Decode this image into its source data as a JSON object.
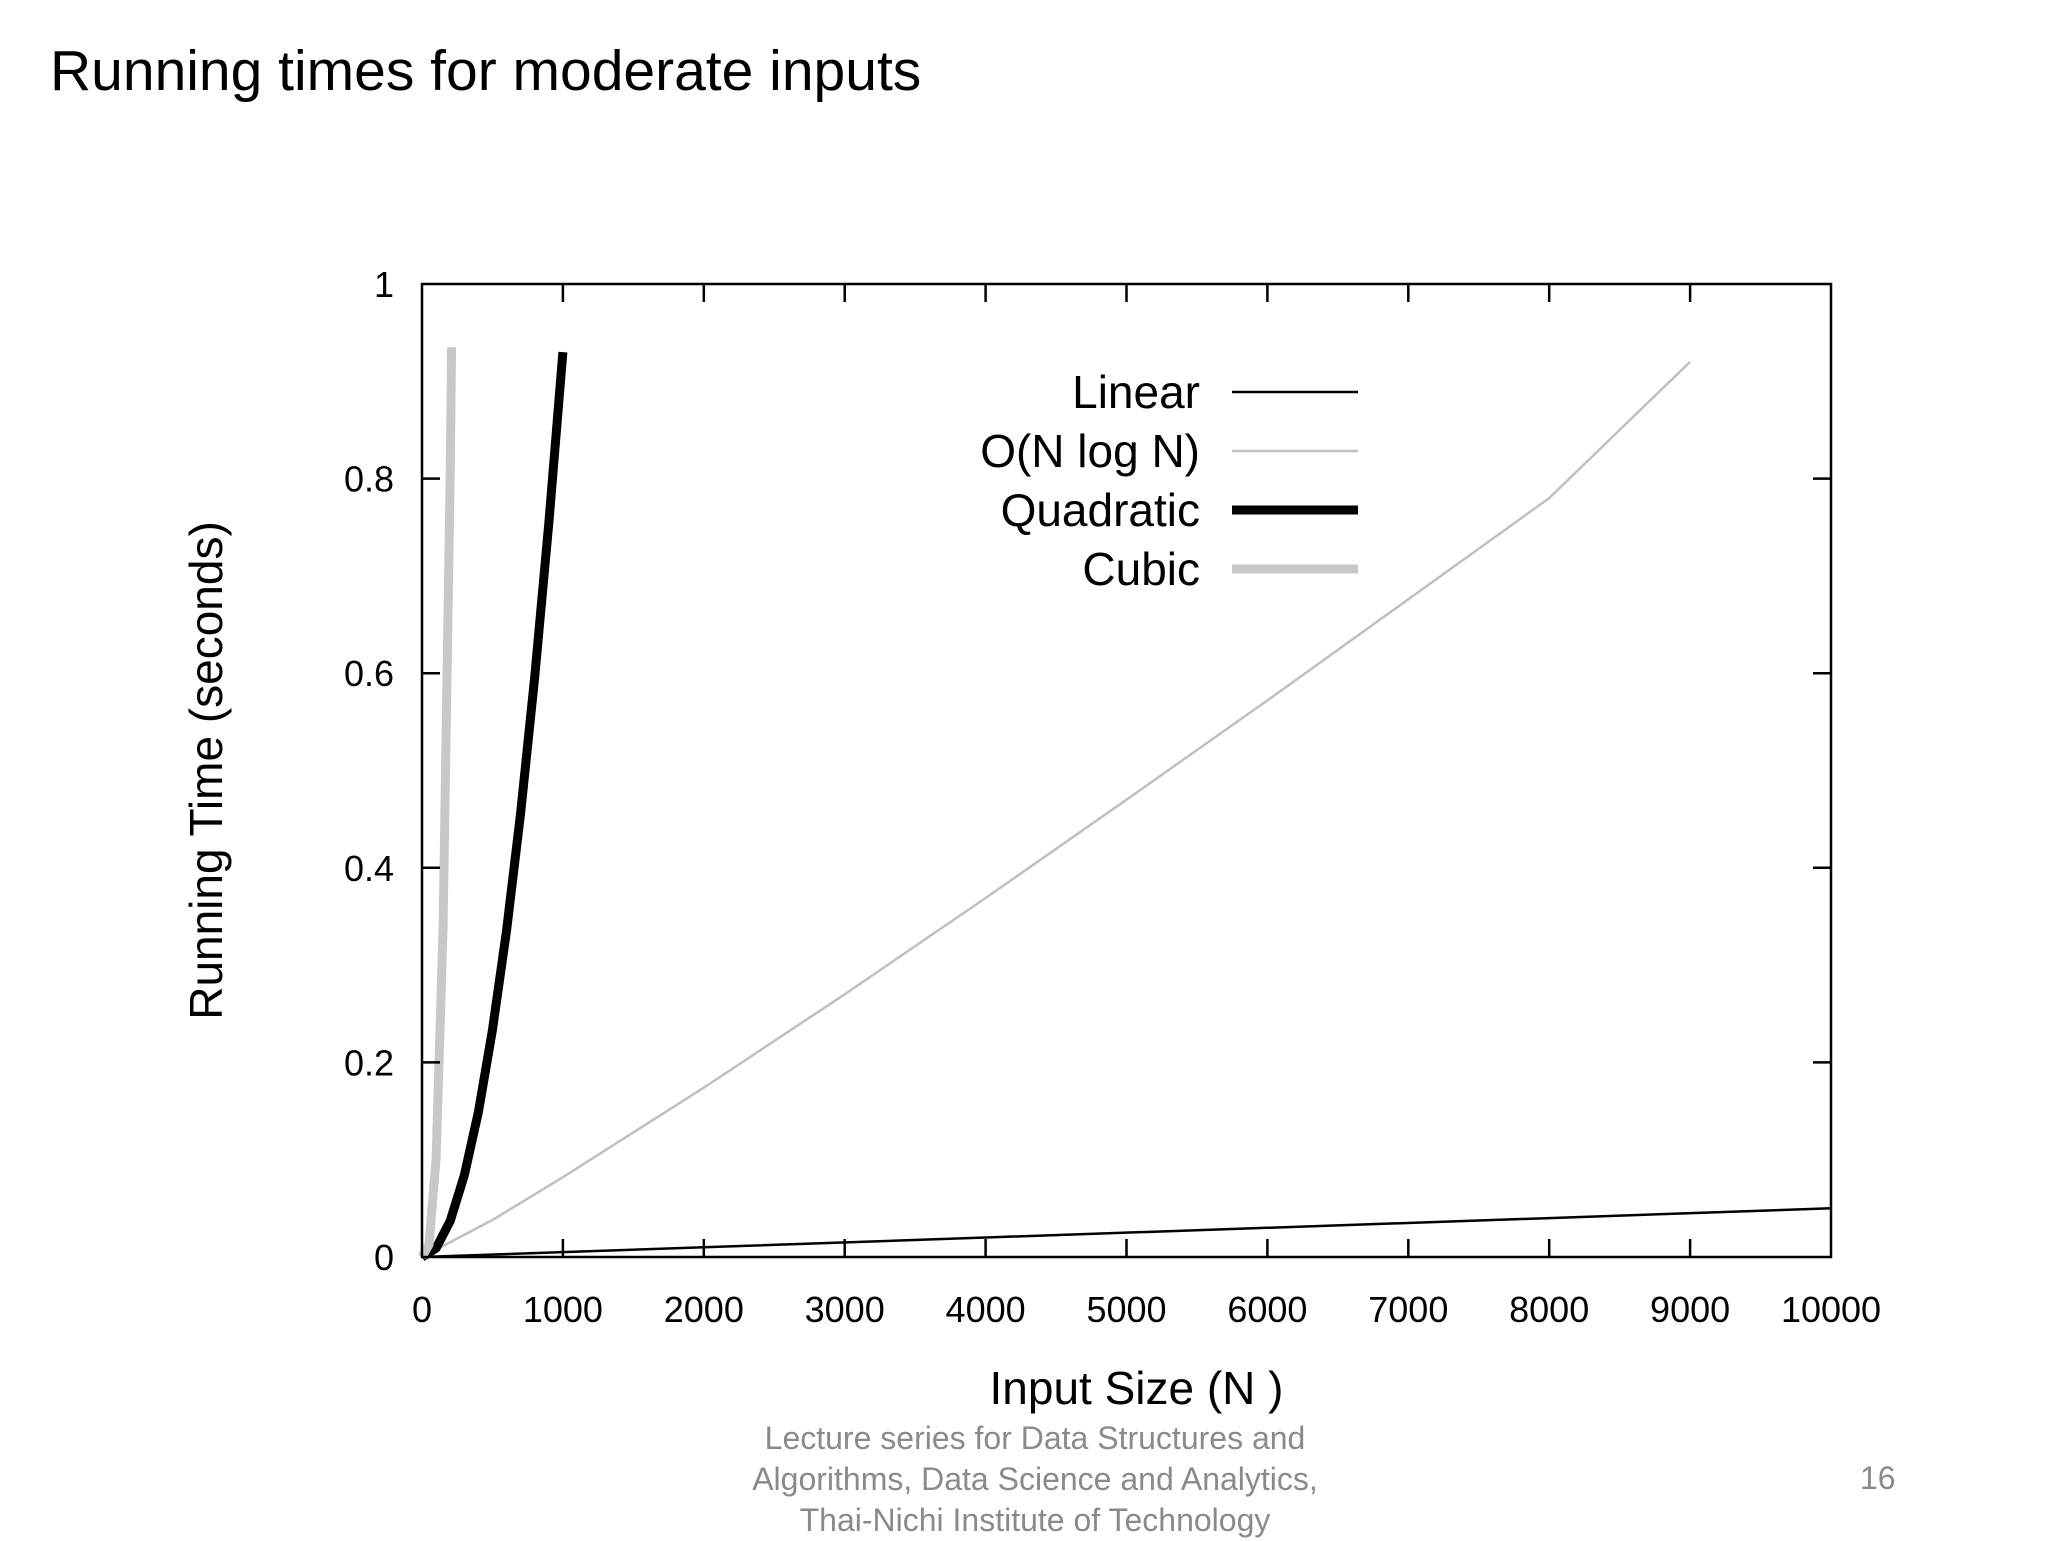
{
  "slide": {
    "title": "Running times for moderate inputs",
    "footer": [
      "Lecture series for Data Structures and",
      "Algorithms, Data Science and Analytics,",
      "Thai-Nichi Institute of Technology"
    ],
    "page_number": "16"
  },
  "chart_data": {
    "type": "line",
    "title": "",
    "xlabel": "Input Size (N )",
    "ylabel": "Running Time (seconds)",
    "xlim": [
      0,
      10000
    ],
    "ylim": [
      0,
      1
    ],
    "x_ticks": [
      "0",
      "1000",
      "2000",
      "3000",
      "4000",
      "5000",
      "6000",
      "7000",
      "8000",
      "9000",
      "10000"
    ],
    "y_ticks": [
      "0",
      "0.2",
      "0.4",
      "0.6",
      "0.8",
      "1"
    ],
    "x_tick_values": [
      0,
      1000,
      2000,
      3000,
      4000,
      5000,
      6000,
      7000,
      8000,
      9000,
      10000
    ],
    "y_tick_values": [
      0,
      0.2,
      0.4,
      0.6,
      0.8,
      1
    ],
    "grid": false,
    "legend_position": "top-right",
    "series": [
      {
        "name": "Linear",
        "color": "#000000",
        "style": "thin",
        "x": [
          0,
          2000,
          4000,
          6000,
          8000,
          10000
        ],
        "y": [
          0,
          0.01,
          0.02,
          0.03,
          0.04,
          0.05
        ]
      },
      {
        "name": "O(N log N)",
        "color": "#c0c0c0",
        "style": "thin",
        "x": [
          0,
          500,
          1000,
          2000,
          3000,
          4000,
          5000,
          6000,
          7000,
          8000,
          9000
        ],
        "y": [
          0,
          0.038,
          0.082,
          0.174,
          0.27,
          0.369,
          0.47,
          0.572,
          0.676,
          0.78,
          0.92
        ]
      },
      {
        "name": "Quadratic",
        "color": "#000000",
        "style": "thick",
        "x": [
          0,
          100,
          200,
          300,
          400,
          500,
          600,
          700,
          800,
          900,
          1000
        ],
        "y": [
          0,
          0.009,
          0.037,
          0.084,
          0.149,
          0.233,
          0.335,
          0.456,
          0.596,
          0.754,
          0.93
        ]
      },
      {
        "name": "Cubic",
        "color": "#c8c8c8",
        "style": "thick",
        "x": [
          0,
          50,
          100,
          150,
          200,
          210
        ],
        "y": [
          0,
          0.0126,
          0.101,
          0.34,
          0.806,
          0.935
        ]
      }
    ]
  }
}
